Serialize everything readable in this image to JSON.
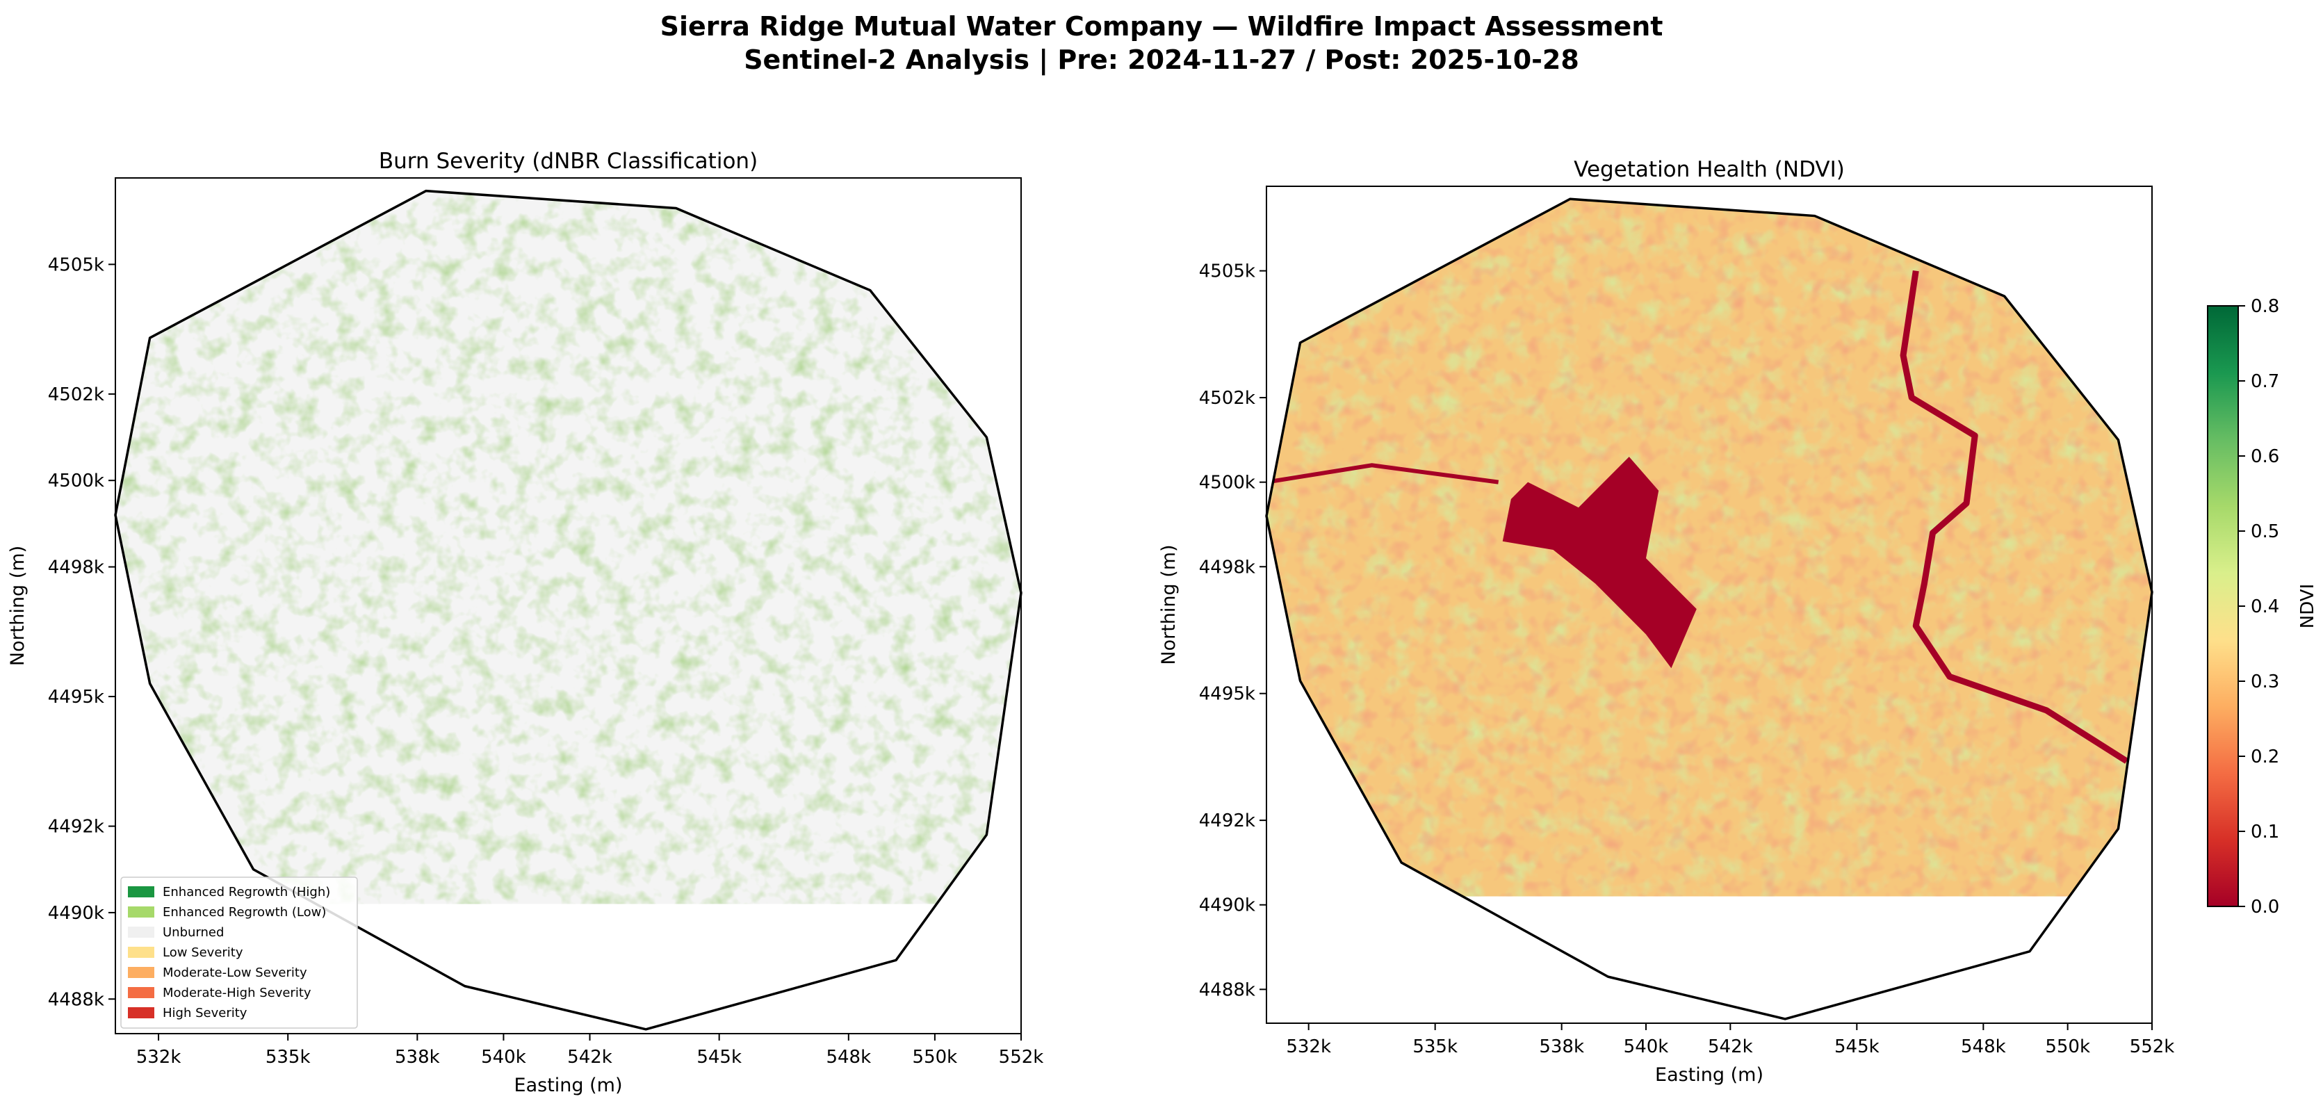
{
  "figure": {
    "suptitle_line1": "Sierra Ridge Mutual Water Company — Wildfire Impact Assessment",
    "suptitle_line2": "Sentinel-2 Analysis | Pre: 2024-11-27 / Post: 2025-10-28"
  },
  "chart_data": [
    {
      "type": "heatmap",
      "title": "Burn Severity (dNBR Classification)",
      "xlabel": "Easting (m)",
      "ylabel": "Northing (m)",
      "xlim": [
        531000,
        552000
      ],
      "ylim": [
        4487200,
        4507000
      ],
      "xticks": [
        532000,
        535000,
        538000,
        540000,
        542000,
        545000,
        548000,
        550000,
        552000
      ],
      "xtick_labels": [
        "532k",
        "535k",
        "538k",
        "540k",
        "542k",
        "545k",
        "548k",
        "550k",
        "552k"
      ],
      "yticks": [
        4488000,
        4490000,
        4492000,
        4495000,
        4498000,
        4500000,
        4502000,
        4505000
      ],
      "ytick_labels": [
        "4488k",
        "4490k",
        "4492k",
        "4495k",
        "4498k",
        "4500k",
        "4502k",
        "4505k"
      ],
      "raster_extent": {
        "x": [
          531000,
          552000
        ],
        "y": [
          4490200,
          4506800
        ]
      },
      "grid": false,
      "legend_position": "lower-left",
      "legend": [
        {
          "label": "Enhanced Regrowth (High)",
          "color": "#1a9641"
        },
        {
          "label": "Enhanced Regrowth (Low)",
          "color": "#a6d96a"
        },
        {
          "label": "Unburned",
          "color": "#f0f0f0"
        },
        {
          "label": "Low Severity",
          "color": "#fee08b"
        },
        {
          "label": "Moderate-Low Severity",
          "color": "#fdae61"
        },
        {
          "label": "Moderate-High Severity",
          "color": "#f46d43"
        },
        {
          "label": "High Severity",
          "color": "#d73027"
        }
      ],
      "boundary_polygon": [
        [
          538200,
          4506700
        ],
        [
          544000,
          4506300
        ],
        [
          548500,
          4504400
        ],
        [
          551200,
          4501000
        ],
        [
          552000,
          4497400
        ],
        [
          551200,
          4491800
        ],
        [
          549100,
          4488900
        ],
        [
          543300,
          4487300
        ],
        [
          539100,
          4488300
        ],
        [
          534200,
          4491000
        ],
        [
          531800,
          4495300
        ],
        [
          531000,
          4499200
        ],
        [
          531800,
          4503300
        ]
      ]
    },
    {
      "type": "heatmap",
      "title": "Vegetation Health (NDVI)",
      "xlabel": "Easting (m)",
      "ylabel": "Northing (m)",
      "xlim": [
        531000,
        552000
      ],
      "ylim": [
        4487200,
        4507000
      ],
      "xticks": [
        532000,
        535000,
        538000,
        540000,
        542000,
        545000,
        548000,
        550000,
        552000
      ],
      "xtick_labels": [
        "532k",
        "535k",
        "538k",
        "540k",
        "542k",
        "545k",
        "548k",
        "550k",
        "552k"
      ],
      "yticks": [
        4488000,
        4490000,
        4492000,
        4495000,
        4498000,
        4500000,
        4502000,
        4505000
      ],
      "ytick_labels": [
        "4488k",
        "4490k",
        "4492k",
        "4495k",
        "4498k",
        "4500k",
        "4502k",
        "4505k"
      ],
      "raster_extent": {
        "x": [
          531000,
          552000
        ],
        "y": [
          4490200,
          4506800
        ]
      },
      "grid": false,
      "colormap": "RdYlGn",
      "colorbar": {
        "label": "NDVI",
        "range": [
          0.0,
          0.8
        ],
        "ticks": [
          0.0,
          0.1,
          0.2,
          0.3,
          0.4,
          0.5,
          0.6,
          0.7,
          0.8
        ],
        "tick_labels": [
          "0.0",
          "0.1",
          "0.2",
          "0.3",
          "0.4",
          "0.5",
          "0.6",
          "0.7",
          "0.8"
        ],
        "colors": [
          "#a50026",
          "#d73027",
          "#f46d43",
          "#fdae61",
          "#fee08b",
          "#d9ef8b",
          "#a6d96a",
          "#66bd63",
          "#1a9850",
          "#006837"
        ]
      },
      "boundary_polygon": [
        [
          538200,
          4506700
        ],
        [
          544000,
          4506300
        ],
        [
          548500,
          4504400
        ],
        [
          551200,
          4501000
        ],
        [
          552000,
          4497400
        ],
        [
          551200,
          4491800
        ],
        [
          549100,
          4488900
        ],
        [
          543300,
          4487300
        ],
        [
          539100,
          4488300
        ],
        [
          534200,
          4491000
        ],
        [
          531800,
          4495300
        ],
        [
          531000,
          4499200
        ],
        [
          531800,
          4503300
        ]
      ]
    }
  ]
}
